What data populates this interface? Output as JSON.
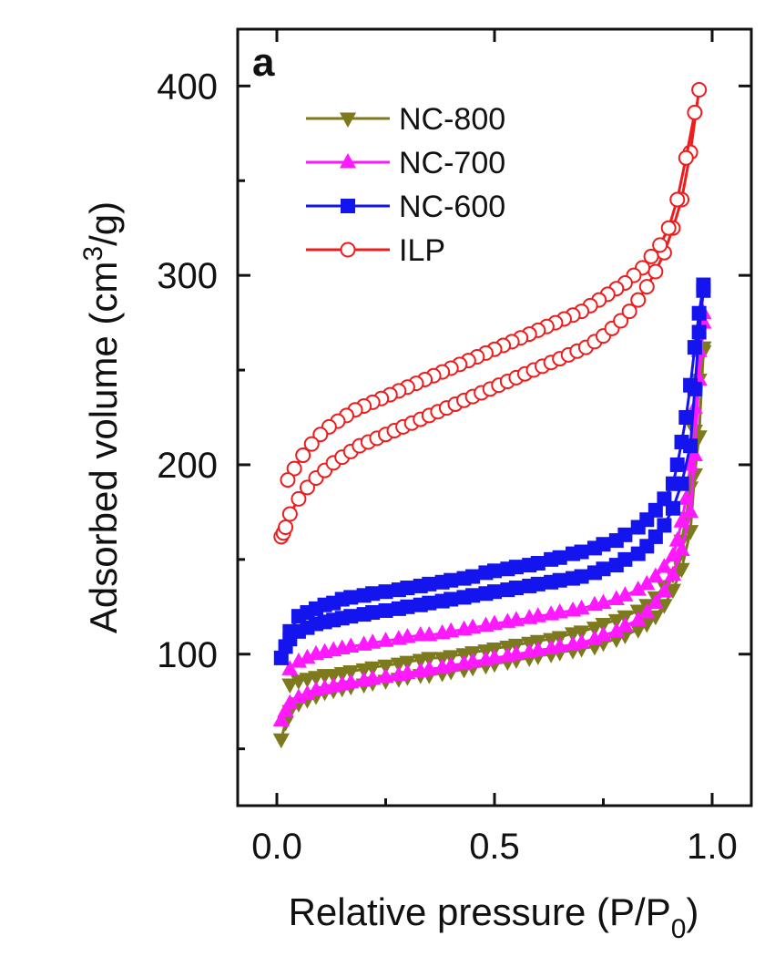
{
  "chart_data": {
    "type": "line",
    "panel_label": "a",
    "xlabel": {
      "main": "Relative pressure (P/P",
      "sub": "0",
      "close": ")"
    },
    "ylabel": {
      "main": "Adsorbed volume (cm",
      "sup": "3",
      "tail": "/g)"
    },
    "xlim": [
      -0.09,
      1.09
    ],
    "ylim": [
      20,
      430
    ],
    "xticks": [
      0.0,
      0.5,
      1.0
    ],
    "xtick_labels": [
      "0.0",
      "0.5",
      "1.0"
    ],
    "yticks": [
      100,
      200,
      300,
      400
    ],
    "ytick_labels": [
      "100",
      "200",
      "300",
      "400"
    ],
    "grid": false,
    "legend_position": "top-left",
    "series": [
      {
        "name": "NC-800",
        "color": "#7c7a1c",
        "marker": "triangle-down",
        "fill": true,
        "adsorption": {
          "x": [
            0.01,
            0.02,
            0.03,
            0.05,
            0.07,
            0.09,
            0.11,
            0.13,
            0.15,
            0.17,
            0.2,
            0.22,
            0.25,
            0.28,
            0.3,
            0.33,
            0.35,
            0.38,
            0.4,
            0.43,
            0.45,
            0.48,
            0.5,
            0.53,
            0.55,
            0.58,
            0.6,
            0.63,
            0.65,
            0.68,
            0.7,
            0.73,
            0.75,
            0.78,
            0.8,
            0.83,
            0.85,
            0.87,
            0.89,
            0.91,
            0.93,
            0.95,
            0.96,
            0.97,
            0.98
          ],
          "y": [
            55,
            64,
            70,
            74,
            76,
            78,
            80,
            81,
            82,
            83,
            84,
            85,
            86,
            87,
            88,
            89,
            89,
            90,
            91,
            92,
            93,
            94,
            95,
            96,
            97,
            98,
            99,
            100,
            101,
            102,
            103,
            104,
            106,
            108,
            110,
            113,
            116,
            120,
            126,
            134,
            145,
            165,
            195,
            215,
            260
          ]
        },
        "desorption": {
          "x": [
            0.98,
            0.97,
            0.96,
            0.95,
            0.94,
            0.93,
            0.92,
            0.91,
            0.89,
            0.87,
            0.85,
            0.83,
            0.8,
            0.78,
            0.75,
            0.73,
            0.7,
            0.68,
            0.65,
            0.63,
            0.6,
            0.58,
            0.55,
            0.53,
            0.5,
            0.48,
            0.45,
            0.43,
            0.4,
            0.38,
            0.35,
            0.33,
            0.3,
            0.28,
            0.25,
            0.22,
            0.2,
            0.17,
            0.15,
            0.13,
            0.11,
            0.09,
            0.07,
            0.05,
            0.03
          ],
          "y": [
            262,
            245,
            218,
            188,
            172,
            160,
            150,
            142,
            136,
            130,
            126,
            123,
            120,
            118,
            116,
            114,
            112,
            111,
            109,
            108,
            107,
            106,
            105,
            104,
            103,
            102,
            101,
            100,
            99,
            98,
            98,
            97,
            96,
            95,
            94,
            93,
            92,
            91,
            90,
            89,
            89,
            88,
            87,
            86,
            84
          ]
        }
      },
      {
        "name": "NC-700",
        "color": "#ff19ff",
        "marker": "triangle-up",
        "fill": true,
        "adsorption": {
          "x": [
            0.01,
            0.02,
            0.03,
            0.05,
            0.07,
            0.09,
            0.11,
            0.13,
            0.15,
            0.17,
            0.2,
            0.22,
            0.25,
            0.28,
            0.3,
            0.33,
            0.35,
            0.38,
            0.4,
            0.43,
            0.45,
            0.48,
            0.5,
            0.53,
            0.55,
            0.58,
            0.6,
            0.63,
            0.65,
            0.68,
            0.7,
            0.73,
            0.75,
            0.78,
            0.8,
            0.83,
            0.85,
            0.87,
            0.89,
            0.91,
            0.93,
            0.95,
            0.96,
            0.97,
            0.98
          ],
          "y": [
            65,
            70,
            74,
            77,
            79,
            81,
            82,
            83,
            84,
            85,
            86,
            87,
            88,
            89,
            90,
            91,
            92,
            93,
            94,
            95,
            96,
            97,
            98,
            99,
            100,
            101,
            102,
            103,
            104,
            105,
            106,
            108,
            110,
            112,
            115,
            118,
            122,
            127,
            133,
            142,
            155,
            175,
            205,
            245,
            275
          ]
        },
        "desorption": {
          "x": [
            0.98,
            0.97,
            0.96,
            0.95,
            0.94,
            0.93,
            0.92,
            0.91,
            0.89,
            0.87,
            0.85,
            0.83,
            0.8,
            0.78,
            0.75,
            0.73,
            0.7,
            0.68,
            0.65,
            0.63,
            0.6,
            0.58,
            0.55,
            0.53,
            0.5,
            0.48,
            0.45,
            0.43,
            0.4,
            0.38,
            0.35,
            0.33,
            0.3,
            0.28,
            0.25,
            0.22,
            0.2,
            0.17,
            0.15,
            0.13,
            0.11,
            0.09,
            0.07,
            0.05,
            0.03
          ],
          "y": [
            280,
            260,
            230,
            200,
            182,
            170,
            160,
            152,
            146,
            141,
            137,
            134,
            131,
            129,
            127,
            126,
            124,
            123,
            122,
            121,
            120,
            119,
            118,
            117,
            116,
            115,
            114,
            113,
            112,
            111,
            110,
            110,
            109,
            108,
            107,
            106,
            105,
            104,
            103,
            102,
            101,
            100,
            98,
            96,
            92
          ]
        }
      },
      {
        "name": "NC-600",
        "color": "#1414ee",
        "marker": "square",
        "fill": true,
        "adsorption": {
          "x": [
            0.01,
            0.02,
            0.03,
            0.05,
            0.07,
            0.09,
            0.11,
            0.13,
            0.15,
            0.17,
            0.2,
            0.22,
            0.25,
            0.28,
            0.3,
            0.33,
            0.35,
            0.38,
            0.4,
            0.43,
            0.45,
            0.48,
            0.5,
            0.53,
            0.55,
            0.58,
            0.6,
            0.63,
            0.65,
            0.68,
            0.7,
            0.73,
            0.75,
            0.78,
            0.8,
            0.83,
            0.85,
            0.87,
            0.89,
            0.91,
            0.93,
            0.95,
            0.96,
            0.97,
            0.98
          ],
          "y": [
            98,
            104,
            108,
            112,
            114,
            116,
            117,
            118,
            119,
            120,
            121,
            122,
            123,
            124,
            125,
            126,
            127,
            128,
            129,
            130,
            131,
            132,
            133,
            134,
            135,
            136,
            137,
            138,
            139,
            140,
            141,
            143,
            145,
            147,
            150,
            153,
            157,
            162,
            168,
            177,
            190,
            210,
            240,
            270,
            292
          ]
        },
        "desorption": {
          "x": [
            0.98,
            0.97,
            0.96,
            0.95,
            0.94,
            0.93,
            0.92,
            0.91,
            0.89,
            0.87,
            0.85,
            0.83,
            0.8,
            0.78,
            0.75,
            0.73,
            0.7,
            0.68,
            0.65,
            0.63,
            0.6,
            0.58,
            0.55,
            0.53,
            0.5,
            0.48,
            0.45,
            0.43,
            0.4,
            0.38,
            0.35,
            0.33,
            0.3,
            0.28,
            0.25,
            0.22,
            0.2,
            0.17,
            0.15,
            0.13,
            0.11,
            0.09,
            0.07,
            0.05,
            0.03
          ],
          "y": [
            295,
            280,
            262,
            242,
            225,
            212,
            200,
            190,
            182,
            176,
            171,
            167,
            163,
            160,
            158,
            156,
            154,
            153,
            151,
            150,
            148,
            147,
            146,
            145,
            144,
            143,
            141,
            140,
            139,
            138,
            137,
            136,
            135,
            134,
            133,
            132,
            131,
            130,
            129,
            127,
            126,
            124,
            122,
            120,
            112
          ]
        }
      },
      {
        "name": "ILP",
        "color": "#ee1c1c",
        "marker": "circle",
        "fill": false,
        "adsorption": {
          "x": [
            0.01,
            0.015,
            0.02,
            0.03,
            0.05,
            0.07,
            0.09,
            0.11,
            0.13,
            0.15,
            0.17,
            0.19,
            0.21,
            0.23,
            0.25,
            0.27,
            0.29,
            0.31,
            0.33,
            0.35,
            0.37,
            0.39,
            0.41,
            0.43,
            0.45,
            0.47,
            0.49,
            0.51,
            0.53,
            0.55,
            0.57,
            0.59,
            0.61,
            0.63,
            0.65,
            0.67,
            0.69,
            0.71,
            0.73,
            0.75,
            0.77,
            0.79,
            0.81,
            0.83,
            0.85,
            0.87,
            0.89,
            0.91,
            0.93,
            0.95,
            0.97
          ],
          "y": [
            162,
            164,
            167,
            174,
            182,
            188,
            193,
            197,
            201,
            204,
            207,
            210,
            212,
            214,
            216,
            218,
            220,
            222,
            224,
            226,
            228,
            230,
            232,
            234,
            236,
            238,
            240,
            242,
            244,
            246,
            248,
            250,
            252,
            254,
            256,
            258,
            260,
            262,
            265,
            268,
            272,
            276,
            281,
            287,
            294,
            302,
            312,
            325,
            340,
            365,
            398
          ]
        },
        "desorption": {
          "x": [
            0.96,
            0.94,
            0.92,
            0.9,
            0.88,
            0.86,
            0.84,
            0.82,
            0.8,
            0.78,
            0.76,
            0.74,
            0.72,
            0.7,
            0.68,
            0.66,
            0.64,
            0.62,
            0.6,
            0.58,
            0.56,
            0.54,
            0.52,
            0.5,
            0.48,
            0.46,
            0.44,
            0.42,
            0.4,
            0.38,
            0.36,
            0.34,
            0.32,
            0.3,
            0.28,
            0.26,
            0.24,
            0.22,
            0.2,
            0.18,
            0.16,
            0.14,
            0.12,
            0.1,
            0.08,
            0.06,
            0.04,
            0.025
          ],
          "y": [
            386,
            362,
            340,
            325,
            316,
            310,
            304,
            300,
            296,
            293,
            290,
            287,
            284,
            281,
            279,
            277,
            275,
            273,
            271,
            269,
            267,
            265,
            263,
            261,
            259,
            257,
            255,
            253,
            251,
            249,
            247,
            245,
            243,
            241,
            239,
            237,
            235,
            233,
            231,
            229,
            226,
            223,
            220,
            216,
            211,
            205,
            198,
            192
          ]
        }
      }
    ]
  }
}
